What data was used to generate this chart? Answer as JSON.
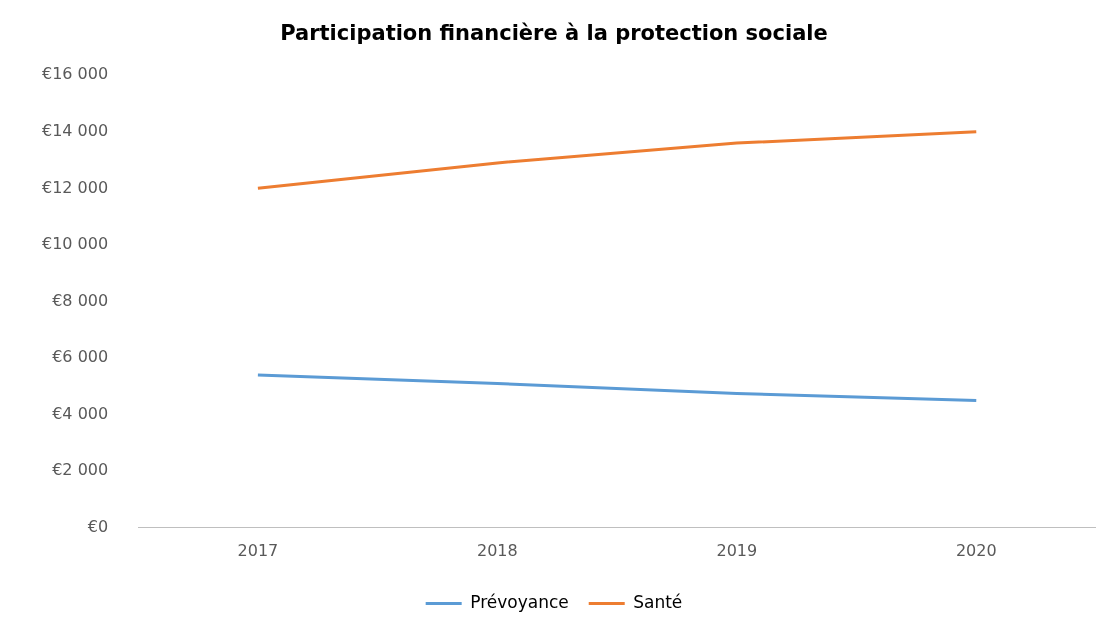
{
  "chart_data": {
    "type": "line",
    "title": "Participation financière à la protection sociale",
    "categories": [
      "2017",
      "2018",
      "2019",
      "2020"
    ],
    "series": [
      {
        "name": "Prévoyance",
        "color": "#5b9bd5",
        "values": [
          5400,
          5100,
          4750,
          4500
        ]
      },
      {
        "name": "Santé",
        "color": "#ed7d31",
        "values": [
          12000,
          12900,
          13600,
          14000
        ]
      }
    ],
    "ylim": [
      0,
      16000
    ],
    "yticks": [
      {
        "value": 0,
        "label": "€0"
      },
      {
        "value": 2000,
        "label": "€2 000"
      },
      {
        "value": 4000,
        "label": "€4 000"
      },
      {
        "value": 6000,
        "label": "€6 000"
      },
      {
        "value": 8000,
        "label": "€8 000"
      },
      {
        "value": 10000,
        "label": "€10 000"
      },
      {
        "value": 12000,
        "label": "€12 000"
      },
      {
        "value": 14000,
        "label": "€14 000"
      },
      {
        "value": 16000,
        "label": "€16 000"
      }
    ],
    "grid": false,
    "legend": "bottom",
    "marker": "none",
    "line_style": "solid"
  }
}
